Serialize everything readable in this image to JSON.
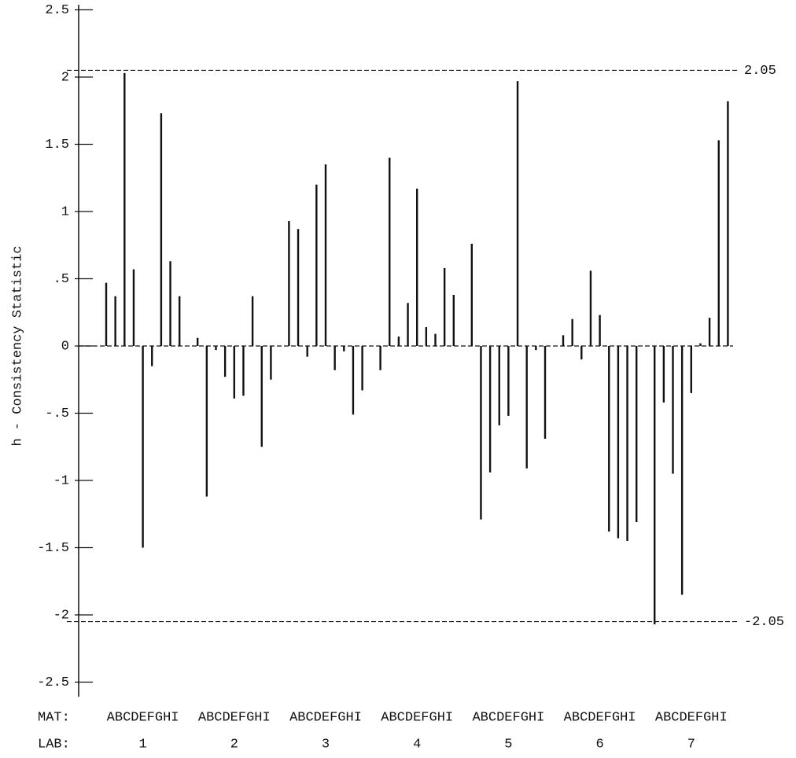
{
  "chart_data": {
    "type": "bar",
    "y_label": "h - Consistency Statistic",
    "ylim": [
      -2.5,
      2.5
    ],
    "yticks": [
      2.5,
      2,
      1.5,
      1,
      {
        "value": 0.5,
        "label": ".5"
      },
      0,
      {
        "value": -0.5,
        "label": "-.5"
      },
      -1,
      -1.5,
      -2,
      -2.5
    ],
    "reference_lines": [
      2.05,
      -2.05
    ],
    "mat_label": "MAT:",
    "lab_label": "LAB:",
    "color": "#111111",
    "groups": [
      {
        "lab": "1",
        "materials": "ABCDEFGHI",
        "values": [
          0.47,
          0.37,
          2.03,
          0.57,
          -1.5,
          -0.15,
          1.73,
          0.63,
          0.37
        ]
      },
      {
        "lab": "2",
        "materials": "ABCDEFGHI",
        "values": [
          0.06,
          -1.12,
          -0.03,
          -0.23,
          -0.39,
          -0.37,
          0.37,
          -0.75,
          -0.25
        ]
      },
      {
        "lab": "3",
        "materials": "ABCDEFGHI",
        "values": [
          0.93,
          0.87,
          -0.08,
          1.2,
          1.35,
          -0.18,
          -0.04,
          -0.51,
          -0.33
        ]
      },
      {
        "lab": "4",
        "materials": "ABCDEFGHI",
        "values": [
          -0.18,
          1.4,
          0.07,
          0.32,
          1.17,
          0.14,
          0.09,
          0.58,
          0.38
        ]
      },
      {
        "lab": "5",
        "materials": "ABCDEFGHI",
        "values": [
          0.76,
          -1.29,
          -0.94,
          -0.59,
          -0.52,
          1.97,
          -0.91,
          -0.03,
          -0.69
        ]
      },
      {
        "lab": "6",
        "materials": "ABCDEFGHI",
        "values": [
          0.08,
          0.2,
          -0.1,
          0.56,
          0.23,
          -1.38,
          -1.43,
          -1.45,
          -1.31
        ]
      },
      {
        "lab": "7",
        "materials": "ABCDEFGHI",
        "values": [
          -2.07,
          -0.42,
          -0.95,
          -1.85,
          -0.35,
          0.02,
          0.21,
          1.53,
          1.82
        ]
      }
    ]
  }
}
